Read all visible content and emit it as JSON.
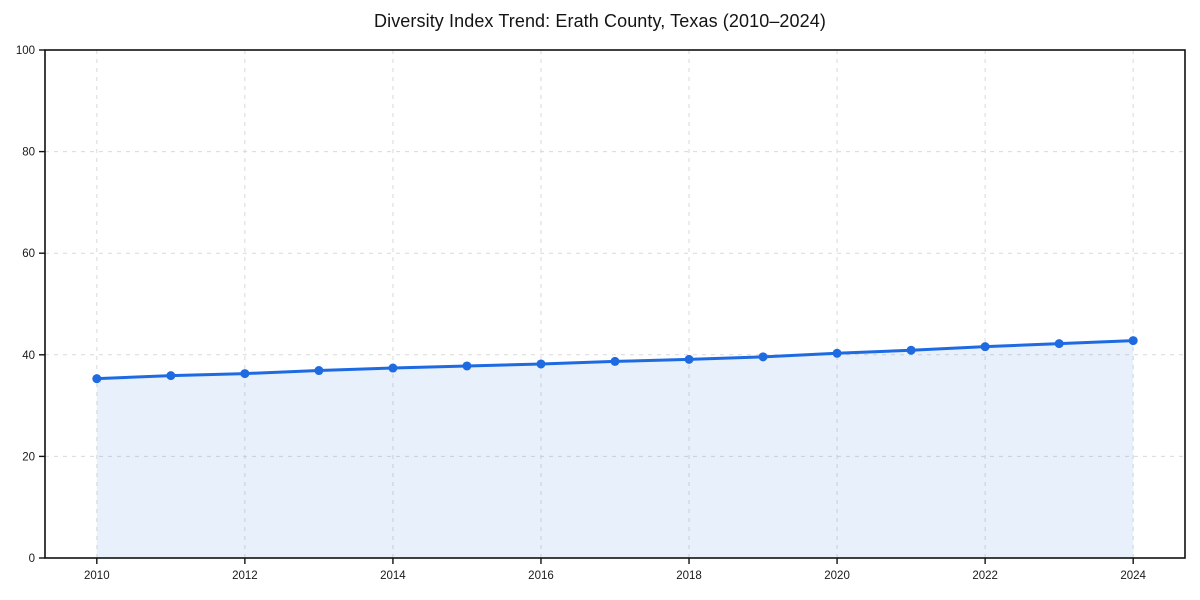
{
  "page": {
    "title": "Diversity Index Trend: Erath County, Texas (2010–2024)"
  },
  "chart_data": {
    "type": "line",
    "title": "Diversity Index Trend: Erath County, Texas (2010–2024)",
    "xlabel": "",
    "ylabel": "",
    "x": [
      2010,
      2011,
      2012,
      2013,
      2014,
      2015,
      2016,
      2017,
      2018,
      2019,
      2020,
      2021,
      2022,
      2023,
      2024
    ],
    "series": [
      {
        "name": "Diversity Index",
        "values": [
          35.3,
          35.9,
          36.3,
          36.9,
          37.4,
          37.8,
          38.2,
          38.7,
          39.1,
          39.6,
          40.3,
          40.9,
          41.6,
          42.2,
          42.8
        ]
      }
    ],
    "x_ticks": [
      2010,
      2012,
      2014,
      2016,
      2018,
      2020,
      2022,
      2024
    ],
    "y_ticks": [
      0,
      20,
      40,
      60,
      80,
      100
    ],
    "xlim": [
      2009.3,
      2024.7
    ],
    "ylim": [
      0,
      100
    ],
    "grid": true,
    "grid_style": "dashed",
    "legend": false,
    "marker": "circle",
    "area_fill": true,
    "colors": {
      "line": "#1e6ae1",
      "marker": "#1e6ae1",
      "fill": "#1e6ae1",
      "fill_opacity": 0.1,
      "grid": "#d9d9d9",
      "axis": "#111111",
      "tick_label": "#1a1a1a",
      "title": "#141414",
      "background": "#ffffff"
    }
  }
}
